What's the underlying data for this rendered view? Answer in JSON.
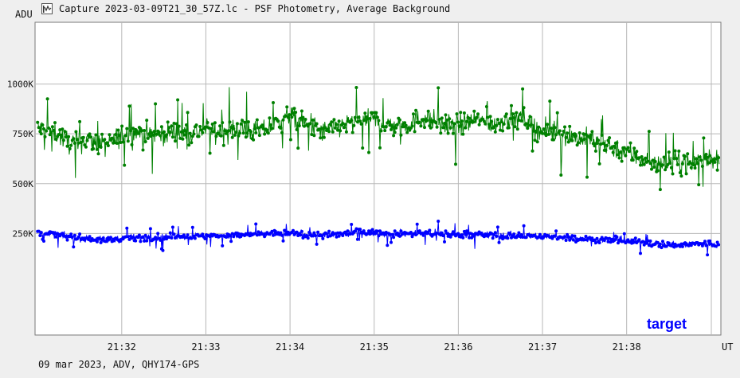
{
  "window": {
    "title": "Capture 2023-03-09T21_30_57Z.lc - PSF Photometry, Average Background",
    "icon": "lightcurve-app-icon"
  },
  "footer": {
    "text": "09 mar 2023, ADV, QHY174-GPS"
  },
  "chart_data": {
    "type": "line",
    "title": "",
    "ylabel": "ADU",
    "xlabel": "UT",
    "y_ticks": [
      {
        "value": 1000000,
        "label": "1000K"
      },
      {
        "value": 750000,
        "label": "750K"
      },
      {
        "value": 500000,
        "label": "500K"
      },
      {
        "value": 250000,
        "label": "250K"
      }
    ],
    "x_ticks": [
      {
        "value": 32,
        "label": "21:32"
      },
      {
        "value": 33,
        "label": "21:33"
      },
      {
        "value": 34,
        "label": "21:34"
      },
      {
        "value": 35,
        "label": "21:35"
      },
      {
        "value": 36,
        "label": "21:36"
      },
      {
        "value": 37,
        "label": "21:37"
      },
      {
        "value": 38,
        "label": "21:38"
      }
    ],
    "xlim_minutes": [
      30.97,
      39.12
    ],
    "ylim": [
      -260000,
      1310000
    ],
    "grid": true,
    "series": [
      {
        "name": "",
        "color": "#008000",
        "x_minutes": [
          31.0,
          31.2,
          31.4,
          31.6,
          31.8,
          32.0,
          32.2,
          32.4,
          32.6,
          32.8,
          33.0,
          33.2,
          33.4,
          33.6,
          33.8,
          34.0,
          34.2,
          34.4,
          34.6,
          34.8,
          35.0,
          35.2,
          35.4,
          35.6,
          35.8,
          36.0,
          36.2,
          36.4,
          36.6,
          36.8,
          37.0,
          37.2,
          37.4,
          37.6,
          37.8,
          38.0,
          38.2,
          38.4,
          38.6,
          38.8,
          39.0,
          39.1
        ],
        "values": [
          780000,
          760000,
          700000,
          720000,
          690000,
          740000,
          760000,
          740000,
          760000,
          750000,
          770000,
          760000,
          780000,
          760000,
          790000,
          840000,
          790000,
          760000,
          790000,
          810000,
          820000,
          790000,
          800000,
          830000,
          800000,
          790000,
          820000,
          800000,
          830000,
          820000,
          760000,
          760000,
          730000,
          720000,
          690000,
          660000,
          620000,
          600000,
          610000,
          600000,
          640000,
          600000
        ]
      },
      {
        "name": "target",
        "color": "#0000ff",
        "x_minutes": [
          31.0,
          31.2,
          31.4,
          31.6,
          31.8,
          32.0,
          32.2,
          32.4,
          32.6,
          32.8,
          33.0,
          33.2,
          33.4,
          33.6,
          33.8,
          34.0,
          34.2,
          34.4,
          34.6,
          34.8,
          35.0,
          35.2,
          35.4,
          35.6,
          35.8,
          36.0,
          36.2,
          36.4,
          36.6,
          36.8,
          37.0,
          37.2,
          37.4,
          37.6,
          37.8,
          38.0,
          38.2,
          38.4,
          38.6,
          38.8,
          39.0,
          39.1
        ],
        "values": [
          255000,
          245000,
          230000,
          225000,
          215000,
          225000,
          230000,
          232000,
          235000,
          235000,
          238000,
          240000,
          240000,
          245000,
          250000,
          250000,
          245000,
          240000,
          245000,
          255000,
          255000,
          248000,
          250000,
          250000,
          248000,
          245000,
          245000,
          240000,
          240000,
          238000,
          235000,
          232000,
          225000,
          220000,
          215000,
          210000,
          205000,
          195000,
          190000,
          195000,
          200000,
          190000
        ]
      }
    ]
  }
}
